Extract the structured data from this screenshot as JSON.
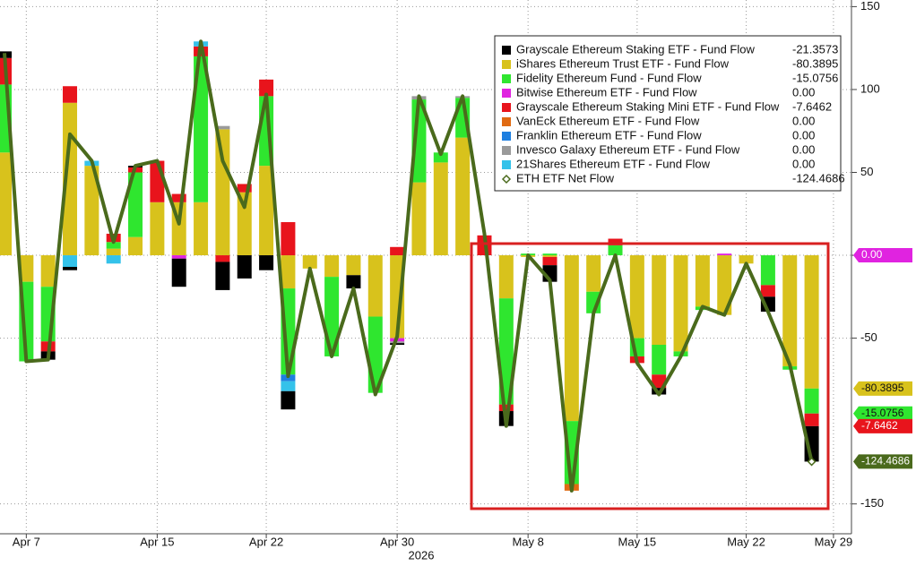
{
  "chart_data": {
    "type": "bar",
    "stacked": true,
    "categories": [
      null,
      "Apr 7",
      null,
      null,
      null,
      null,
      null,
      "Apr 15",
      null,
      null,
      null,
      null,
      "Apr 22",
      null,
      null,
      null,
      null,
      null,
      "Apr 30",
      null,
      null,
      null,
      null,
      null,
      "May 8",
      null,
      null,
      null,
      null,
      "May 15",
      null,
      null,
      null,
      null,
      "May 22",
      null,
      null,
      null,
      "May 29"
    ],
    "year_label": "2026",
    "ylim": [
      -168,
      154
    ],
    "yticks": [
      -150,
      -50,
      0,
      50,
      100,
      150
    ],
    "grid": true,
    "legend": "upper right",
    "series": [
      {
        "name": "Grayscale Ethereum Staking ETF - Fund Flow",
        "color": "#000000",
        "last_label": "-21.3573",
        "tag": false,
        "values": [
          4,
          0,
          -5,
          -2,
          0,
          0,
          1,
          0,
          -17,
          0,
          -17,
          -14,
          -9,
          -11,
          0,
          0,
          -8,
          0,
          -1,
          0,
          0,
          0,
          0,
          -9,
          0,
          -10,
          0,
          0,
          0,
          0,
          -4,
          0,
          0,
          0,
          0,
          -9,
          0,
          -21.3573,
          null
        ]
      },
      {
        "name": "iShares Ethereum Trust ETF - Fund Flow",
        "color": "#d8c21c",
        "last_label": "-80.3895",
        "tag": true,
        "values": [
          62,
          -16,
          -19,
          92,
          54,
          4,
          11,
          32,
          32,
          32,
          76,
          38,
          54,
          -20,
          -8,
          -13,
          -12,
          -37,
          -50,
          44,
          56,
          71,
          0,
          -26,
          -1,
          -1,
          -100,
          -22,
          0,
          -50,
          -54,
          -58,
          -31,
          -36,
          -5,
          0,
          -67,
          -80.3895,
          null
        ]
      },
      {
        "name": "Fidelity Ethereum Fund - Fund Flow",
        "color": "#2fe62f",
        "last_label": "-15.0756",
        "tag": true,
        "values": [
          41,
          -48,
          -33,
          0,
          0,
          4,
          39,
          0,
          0,
          88,
          0,
          0,
          42,
          -52,
          0,
          -48,
          0,
          -46,
          0,
          50,
          6,
          24,
          0,
          -64,
          1,
          1,
          -38,
          -13,
          6,
          -11,
          -18,
          -3,
          -2,
          0,
          0,
          -18,
          -2,
          -15.0756,
          null
        ]
      },
      {
        "name": "Bitwise Ethereum ETF - Fund Flow",
        "color": "#e023e0",
        "last_label": "0.00",
        "tag": true,
        "values": [
          0,
          0,
          0,
          0,
          0,
          0,
          0,
          0,
          -2,
          0,
          0,
          0,
          0,
          0,
          0,
          0,
          0,
          0,
          -2,
          0,
          0,
          0,
          0,
          0,
          0,
          0,
          0,
          0,
          0,
          0,
          0,
          0,
          0,
          1,
          0,
          0,
          0,
          0,
          null
        ]
      },
      {
        "name": "Grayscale Ethereum Staking Mini ETF - Fund Flow",
        "color": "#e8141c",
        "last_label": "-7.6462",
        "tag": true,
        "values": [
          16,
          0,
          -6,
          10,
          0,
          5,
          3,
          25,
          5,
          6,
          -4,
          5,
          10,
          20,
          0,
          0,
          0,
          0,
          5,
          0,
          0,
          0,
          12,
          -4,
          0,
          -5,
          0,
          0,
          4,
          -4,
          -8,
          0,
          0,
          0,
          0,
          -7,
          0,
          -7.6462,
          null
        ]
      },
      {
        "name": "VanEck Ethereum ETF - Fund Flow",
        "color": "#e06a12",
        "last_label": "0.00",
        "tag": false,
        "values": [
          0,
          0,
          0,
          0,
          0,
          0,
          0,
          0,
          0,
          0,
          0,
          0,
          0,
          0,
          0,
          0,
          0,
          0,
          0,
          0,
          0,
          0,
          0,
          0,
          0,
          0,
          -4,
          0,
          0,
          0,
          0,
          0,
          0,
          0,
          0,
          0,
          0,
          0,
          null
        ]
      },
      {
        "name": "Franklin Ethereum ETF - Fund Flow",
        "color": "#1e7fe0",
        "last_label": "0.00",
        "tag": false,
        "values": [
          0,
          0,
          0,
          0,
          0,
          0,
          0,
          0,
          0,
          0,
          0,
          0,
          0,
          -4,
          0,
          0,
          0,
          0,
          0,
          0,
          0,
          0,
          0,
          0,
          0,
          0,
          0,
          0,
          0,
          0,
          0,
          0,
          0,
          0,
          0,
          0,
          0,
          0,
          null
        ]
      },
      {
        "name": "Invesco Galaxy Ethereum ETF - Fund Flow",
        "color": "#9a9a9a",
        "last_label": "0.00",
        "tag": false,
        "values": [
          0,
          0,
          0,
          0,
          0,
          0,
          0,
          0,
          0,
          0,
          2,
          0,
          0,
          0,
          0,
          0,
          0,
          0,
          -1,
          2,
          0,
          1,
          0,
          0,
          0,
          0,
          0,
          0,
          0,
          0,
          0,
          0,
          0,
          0,
          0,
          0,
          0,
          0,
          null
        ]
      },
      {
        "name": "21Shares Ethereum ETF - Fund Flow",
        "color": "#34c2ea",
        "last_label": "0.00",
        "tag": false,
        "values": [
          0,
          0,
          0,
          -7,
          3,
          -5,
          0,
          0,
          0,
          3,
          0,
          0,
          0,
          -6,
          0,
          0,
          0,
          0,
          0,
          0,
          0,
          0,
          0,
          0,
          0,
          0,
          0,
          0,
          0,
          0,
          0,
          0,
          0,
          0,
          0,
          0,
          0,
          0,
          null
        ]
      },
      {
        "name": "ETH ETF Net Flow",
        "type": "line",
        "color": "#4a6a1c",
        "last_label": "-124.4686",
        "tag": true,
        "values": [
          122,
          -64,
          -63,
          73,
          57,
          8,
          54,
          57,
          19,
          129,
          57,
          29,
          97,
          -73,
          -8,
          -61,
          -20,
          -84,
          -49,
          96,
          61,
          96,
          13,
          -103,
          0,
          -15,
          -142,
          -35,
          0,
          -65,
          -84,
          -61,
          -31,
          -36,
          -5,
          -34,
          -66,
          -124.4686,
          null
        ]
      }
    ]
  }
}
